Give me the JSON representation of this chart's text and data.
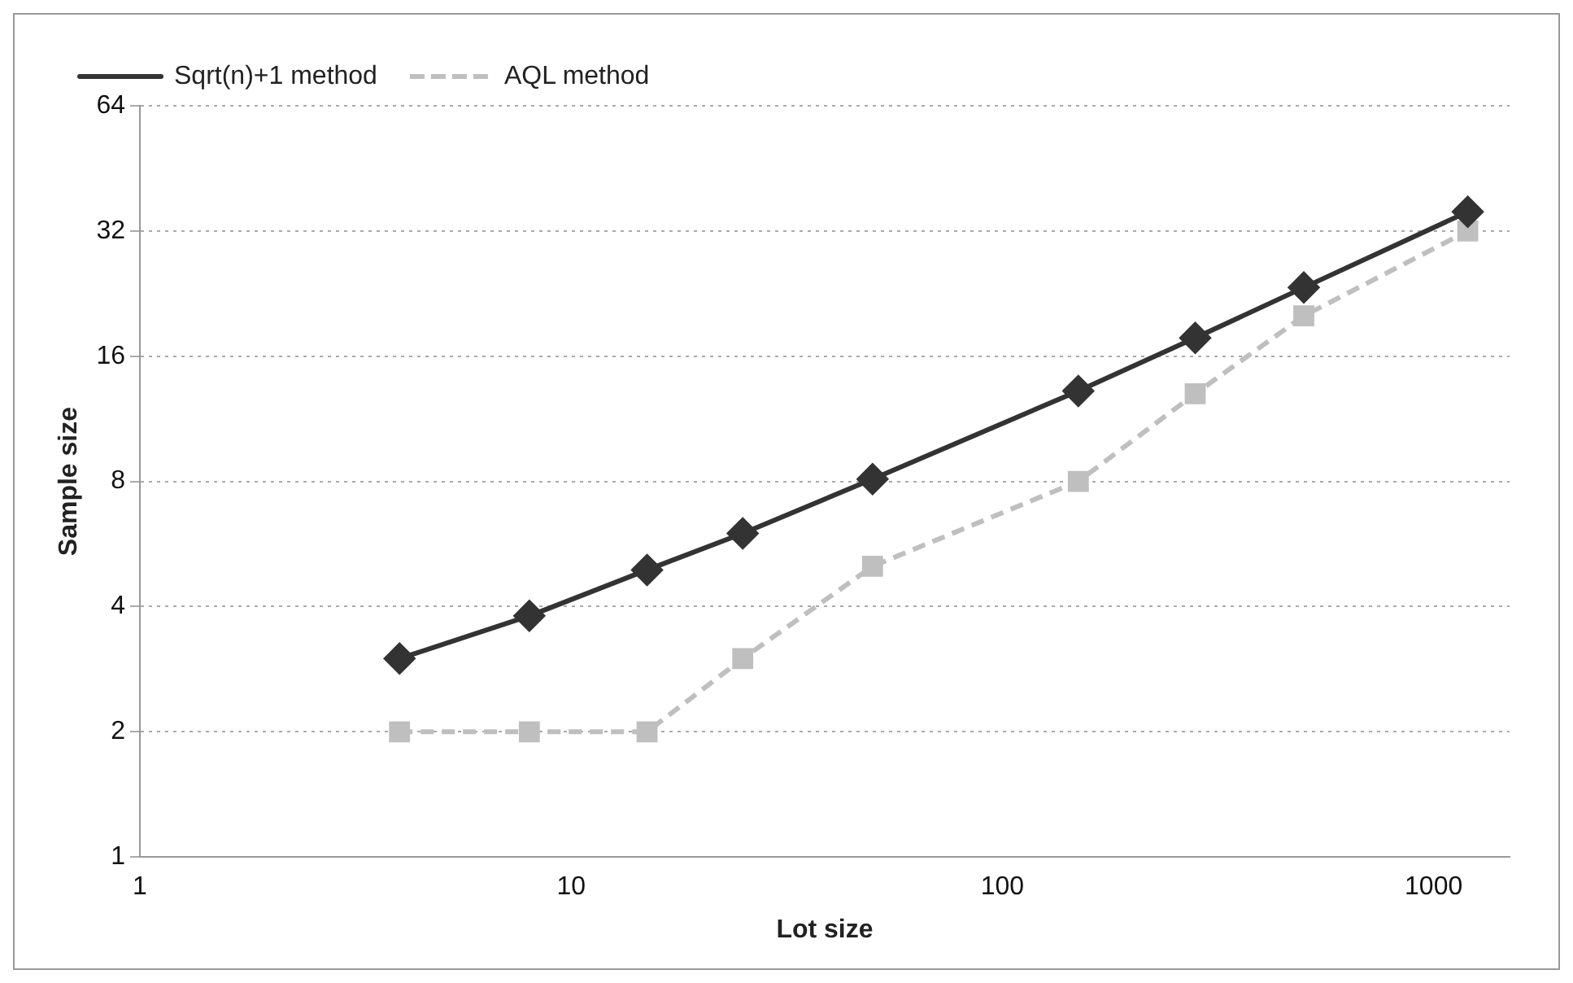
{
  "chart_data": {
    "type": "line",
    "xlabel": "Lot size",
    "ylabel": "Sample size",
    "x": [
      4,
      8,
      15,
      25,
      50,
      150,
      280,
      500,
      1200
    ],
    "series": [
      {
        "name": "Sqrt(n)+1 method",
        "color": "#333333",
        "marker": "diamond",
        "line_style": "solid",
        "values": [
          3,
          3.8,
          4.9,
          6,
          8.1,
          13.2,
          17.7,
          23.4,
          35.6
        ]
      },
      {
        "name": "AQL method",
        "color": "#bfbfbf",
        "marker": "square",
        "line_style": "dashed",
        "values": [
          2,
          2,
          2,
          3,
          5,
          8,
          13,
          20,
          32
        ]
      }
    ],
    "log": "xy",
    "xlim": [
      1,
      1500
    ],
    "xticks": [
      1,
      10,
      100,
      1000
    ],
    "ylim": [
      1,
      64
    ],
    "yticks": [
      1,
      2,
      4,
      8,
      16,
      32,
      64
    ],
    "grid": "y",
    "legend": "top left"
  }
}
